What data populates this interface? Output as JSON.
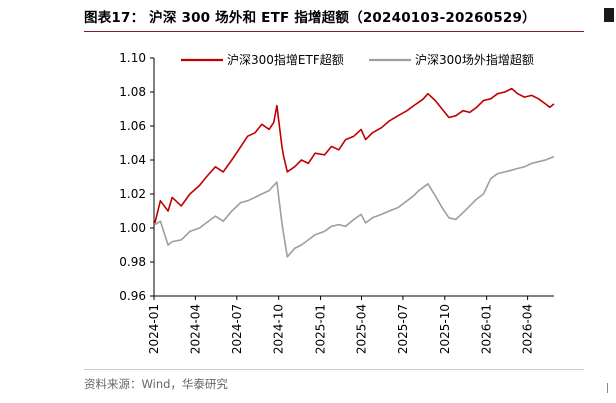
{
  "header": {
    "title": "图表17：  沪深 300 场外和 ETF 指增超额（20240103-20260529）"
  },
  "footer": {
    "source": "资料来源：Wind，华泰研究"
  },
  "chart_data": {
    "type": "line",
    "title": "图表17：  沪深 300 场外和 ETF 指增超额（20240103-20260529）",
    "xlabel": "",
    "ylabel": "",
    "x_range": [
      "2024-01-03",
      "2026-05-29"
    ],
    "ylim": [
      0.96,
      1.1
    ],
    "yticks": [
      "0.96",
      "0.98",
      "1.00",
      "1.02",
      "1.04",
      "1.06",
      "1.08",
      "1.10"
    ],
    "xticks": [
      "2024-01",
      "2024-04",
      "2024-07",
      "2024-10",
      "2025-01",
      "2025-04",
      "2025-07",
      "2025-10",
      "2026-01",
      "2026-04"
    ],
    "grid": false,
    "legend_position": "top",
    "series": [
      {
        "name": "沪深300指增ETF超额",
        "color": "#c00000",
        "x": [
          "2024-01-03",
          "2024-01-15",
          "2024-02-01",
          "2024-02-10",
          "2024-03-01",
          "2024-03-20",
          "2024-04-10",
          "2024-04-25",
          "2024-05-15",
          "2024-06-01",
          "2024-06-20",
          "2024-07-10",
          "2024-07-25",
          "2024-08-10",
          "2024-08-25",
          "2024-09-10",
          "2024-09-20",
          "2024-09-27",
          "2024-10-08",
          "2024-10-12",
          "2024-10-20",
          "2024-11-05",
          "2024-11-20",
          "2024-12-05",
          "2024-12-20",
          "2025-01-10",
          "2025-01-25",
          "2025-02-10",
          "2025-02-25",
          "2025-03-15",
          "2025-03-31",
          "2025-04-10",
          "2025-04-25",
          "2025-05-15",
          "2025-06-01",
          "2025-06-20",
          "2025-07-10",
          "2025-07-25",
          "2025-08-05",
          "2025-08-15",
          "2025-08-25",
          "2025-09-10",
          "2025-09-25",
          "2025-10-10",
          "2025-10-25",
          "2025-11-10",
          "2025-11-25",
          "2025-12-10",
          "2025-12-25",
          "2026-01-10",
          "2026-01-25",
          "2026-02-10",
          "2026-02-25",
          "2026-03-10",
          "2026-03-25",
          "2026-04-10",
          "2026-04-25",
          "2026-05-10",
          "2026-05-20",
          "2026-05-29"
        ],
        "values": [
          1.003,
          1.016,
          1.01,
          1.018,
          1.013,
          1.02,
          1.025,
          1.03,
          1.036,
          1.033,
          1.04,
          1.048,
          1.054,
          1.056,
          1.061,
          1.058,
          1.062,
          1.072,
          1.048,
          1.042,
          1.033,
          1.036,
          1.04,
          1.038,
          1.044,
          1.043,
          1.048,
          1.046,
          1.052,
          1.054,
          1.058,
          1.052,
          1.056,
          1.059,
          1.063,
          1.066,
          1.069,
          1.072,
          1.074,
          1.076,
          1.079,
          1.075,
          1.07,
          1.065,
          1.066,
          1.069,
          1.068,
          1.071,
          1.075,
          1.076,
          1.079,
          1.08,
          1.082,
          1.079,
          1.077,
          1.078,
          1.076,
          1.073,
          1.071,
          1.073
        ]
      },
      {
        "name": "沪深300场外指增超额",
        "color": "#9e9e9e",
        "x": [
          "2024-01-03",
          "2024-01-15",
          "2024-02-01",
          "2024-02-10",
          "2024-03-01",
          "2024-03-20",
          "2024-04-10",
          "2024-04-25",
          "2024-05-15",
          "2024-06-01",
          "2024-06-20",
          "2024-07-10",
          "2024-07-25",
          "2024-08-10",
          "2024-08-25",
          "2024-09-10",
          "2024-09-20",
          "2024-09-27",
          "2024-10-08",
          "2024-10-12",
          "2024-10-20",
          "2024-11-05",
          "2024-11-20",
          "2024-12-05",
          "2024-12-20",
          "2025-01-10",
          "2025-01-25",
          "2025-02-10",
          "2025-02-25",
          "2025-03-15",
          "2025-03-31",
          "2025-04-10",
          "2025-04-25",
          "2025-05-15",
          "2025-06-01",
          "2025-06-20",
          "2025-07-10",
          "2025-07-25",
          "2025-08-05",
          "2025-08-15",
          "2025-08-25",
          "2025-09-10",
          "2025-09-25",
          "2025-10-10",
          "2025-10-25",
          "2025-11-10",
          "2025-11-25",
          "2025-12-10",
          "2025-12-25",
          "2026-01-10",
          "2026-01-25",
          "2026-02-10",
          "2026-02-25",
          "2026-03-10",
          "2026-03-25",
          "2026-04-10",
          "2026-04-25",
          "2026-05-10",
          "2026-05-20",
          "2026-05-29"
        ],
        "values": [
          1.002,
          1.004,
          0.99,
          0.992,
          0.993,
          0.998,
          1.0,
          1.003,
          1.007,
          1.004,
          1.01,
          1.015,
          1.016,
          1.018,
          1.02,
          1.022,
          1.025,
          1.027,
          1.003,
          0.996,
          0.983,
          0.988,
          0.99,
          0.993,
          0.996,
          0.998,
          1.001,
          1.002,
          1.001,
          1.005,
          1.008,
          1.003,
          1.006,
          1.008,
          1.01,
          1.012,
          1.016,
          1.019,
          1.022,
          1.024,
          1.026,
          1.019,
          1.012,
          1.006,
          1.005,
          1.009,
          1.013,
          1.017,
          1.02,
          1.029,
          1.032,
          1.033,
          1.034,
          1.035,
          1.036,
          1.038,
          1.039,
          1.04,
          1.041,
          1.042
        ]
      }
    ]
  }
}
